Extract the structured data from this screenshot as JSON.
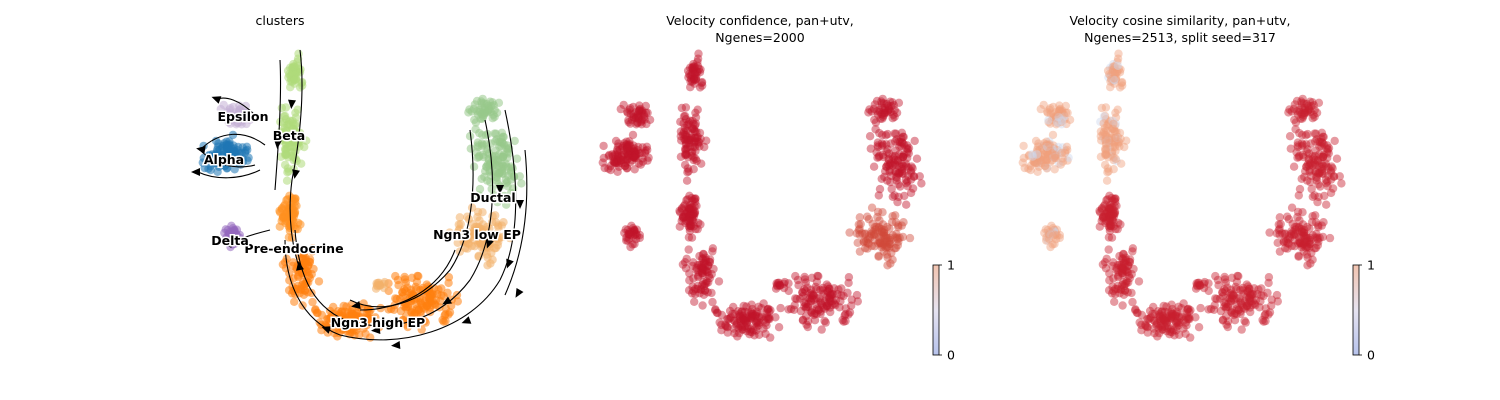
{
  "chart_data": [
    {
      "type": "scatter",
      "title": "clusters",
      "legend_placement": "on-data",
      "grid": false,
      "streamlines": true,
      "clusters": [
        {
          "name": "Ductal",
          "color": "#98c88a"
        },
        {
          "name": "Ngn3 low EP",
          "color": "#f2b06a"
        },
        {
          "name": "Ngn3 high EP",
          "color": "#ff7f0e"
        },
        {
          "name": "Pre-endocrine",
          "color": "#ff8f1f"
        },
        {
          "name": "Beta",
          "color": "#aedb7a"
        },
        {
          "name": "Alpha",
          "color": "#1f77b4"
        },
        {
          "name": "Delta",
          "color": "#9467bd"
        },
        {
          "name": "Epsilon",
          "color": "#c5b0d5"
        }
      ]
    },
    {
      "type": "scatter",
      "title": "Velocity confidence, pan+utv,\n Ngenes=2000",
      "grid": false,
      "colorbar": {
        "min": 0,
        "max": 1,
        "tick_labels": [
          "1",
          "0"
        ],
        "colormap": "coolwarm"
      },
      "point_color": "#c0152b"
    },
    {
      "type": "scatter",
      "title": "Velocity cosine similarity, pan+utv,\n Ngenes=2513, split seed=317",
      "grid": false,
      "colorbar": {
        "min": 0,
        "max": 1,
        "tick_labels": [
          "1",
          "0"
        ],
        "colormap": "coolwarm"
      },
      "point_color": "#c8202e",
      "low_region_color": "#f0a07c"
    }
  ]
}
